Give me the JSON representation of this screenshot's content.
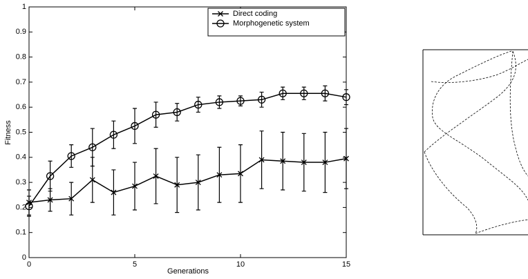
{
  "chart_data": {
    "type": "line",
    "xlabel": "Generations",
    "ylabel": "Fitness",
    "x": [
      0,
      1,
      2,
      3,
      4,
      5,
      6,
      7,
      8,
      9,
      10,
      11,
      12,
      13,
      14,
      15
    ],
    "series": [
      {
        "name": "Direct coding",
        "color": "#000000",
        "marker": "x",
        "values": [
          0.22,
          0.23,
          0.235,
          0.31,
          0.26,
          0.285,
          0.325,
          0.29,
          0.3,
          0.33,
          0.335,
          0.39,
          0.385,
          0.38,
          0.38,
          0.395
        ],
        "errors": [
          0.05,
          0.045,
          0.065,
          0.09,
          0.09,
          0.095,
          0.11,
          0.11,
          0.11,
          0.11,
          0.115,
          0.115,
          0.115,
          0.115,
          0.12,
          0.12
        ]
      },
      {
        "name": "Morphogenetic system",
        "color": "#000000",
        "marker": "o",
        "values": [
          0.205,
          0.325,
          0.405,
          0.44,
          0.49,
          0.525,
          0.57,
          0.58,
          0.61,
          0.62,
          0.625,
          0.63,
          0.655,
          0.655,
          0.655,
          0.64
        ],
        "errors": [
          0.04,
          0.06,
          0.045,
          0.075,
          0.055,
          0.07,
          0.05,
          0.035,
          0.03,
          0.025,
          0.02,
          0.03,
          0.025,
          0.025,
          0.03,
          0.03
        ]
      }
    ],
    "xlim": [
      0,
      15
    ],
    "xticks": [
      0,
      5,
      10,
      15
    ],
    "ylim": [
      0,
      1
    ],
    "yticks": [
      0,
      0.1,
      0.2,
      0.3,
      0.4,
      0.5,
      0.6,
      0.7,
      0.8,
      0.9,
      1
    ],
    "grid": false,
    "legend": "upper right"
  }
}
